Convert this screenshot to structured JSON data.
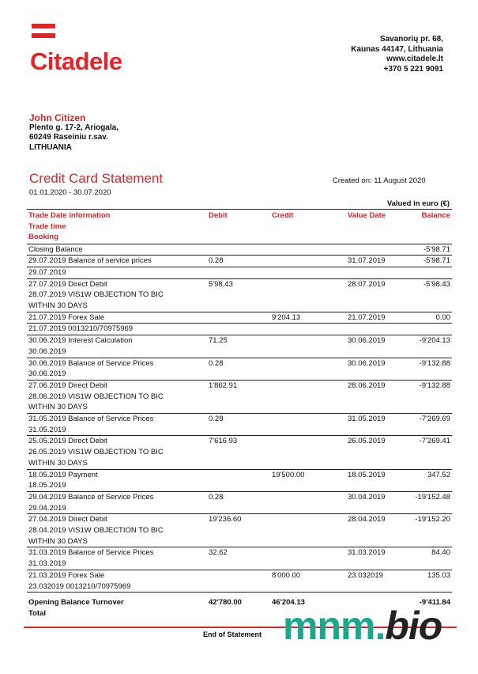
{
  "brand": {
    "name": "Citadele",
    "color": "#e0262b"
  },
  "bank_address": [
    "Savanorių pr. 68,",
    "Kaunas 44147, Lithuania",
    "www.citadele.lt",
    "+370 5 221 9091"
  ],
  "customer": {
    "name": "John Citizen",
    "address": [
      "Plento g. 17-2, Ariogala,",
      "60249 Raseiniu r.sav.",
      "LITHUANIA"
    ]
  },
  "title": "Credit Card Statement",
  "period": "01.01.2020 - 30.07.2020",
  "created": "Created on:  11 August 2020",
  "valued": "Valued in euro (€)",
  "columns": {
    "info": [
      "Trade Date   information",
      "Trade time",
      "Booking"
    ],
    "debit": "Debit",
    "credit": "Credit",
    "value_date": "Value Date",
    "balance": "Balance"
  },
  "rows": [
    {
      "info": [
        "Closing Balance"
      ],
      "debit": "",
      "credit": "",
      "value_date": "",
      "balance": "-5'98.71"
    },
    {
      "info": [
        "29.07.2019 Balance of service prices"
      ],
      "debit": "0.28",
      "credit": "",
      "value_date": "31.07.2019",
      "balance": "-5'98.71"
    },
    {
      "info": [
        "29.07.2019"
      ],
      "debit": "",
      "credit": "",
      "value_date": "",
      "balance": ""
    },
    {
      "info": [
        "27.07.2019 Direct Debit",
        "28.07.2019 VIS1W OBJECTION TO BIC",
        "WITHIN 30 DAYS"
      ],
      "debit": "5'98.43",
      "credit": "",
      "value_date": "28.07.2019",
      "balance": "-5'98.43"
    },
    {
      "info": [
        "21.07.2019 Forex Sale"
      ],
      "debit": "",
      "credit": "9'204.13",
      "value_date": "21.07.2019",
      "balance": "0.00"
    },
    {
      "info": [
        "21.07.2019 0013210/70975969"
      ],
      "debit": "",
      "credit": "",
      "value_date": "",
      "balance": ""
    },
    {
      "info": [
        "30.06.2019 Interest Calculation",
        "30.06.2019"
      ],
      "debit": "71.25",
      "credit": "",
      "value_date": "30.06.2019",
      "balance": "-9'204.13"
    },
    {
      "info": [
        "30.06.2019 Balance of Service Prices",
        "30.06.2019"
      ],
      "debit": "0.28",
      "credit": "",
      "value_date": "30.06.2019",
      "balance": "-9'132.88"
    },
    {
      "info": [
        "27.06.2019 Direct Debit",
        "28.06.2019 VIS1W OBJECTION TO BIC",
        "WITHIN 30 DAYS"
      ],
      "debit": "1'862.91",
      "credit": "",
      "value_date": "28.06.2019",
      "balance": "-9'132.88"
    },
    {
      "info": [
        "31.05.2019 Balance of Service Prices",
        "31.05.2019"
      ],
      "debit": "0.28",
      "credit": "",
      "value_date": "31.05.2019",
      "balance": "-7'269.69"
    },
    {
      "info": [
        "25.05.2019 Direct Debit",
        "26.05.2019 VIS1W OBJECTION TO BIC",
        "WITHIN 30 DAYS"
      ],
      "debit": "7'616.93",
      "credit": "",
      "value_date": "26.05.2019",
      "balance": "-7'269.41"
    },
    {
      "info": [
        "18.05.2019 Payment",
        "18.05.2019"
      ],
      "debit": "",
      "credit": "19'500.00",
      "value_date": "18.05.2019",
      "balance": "347.52"
    },
    {
      "info": [
        "29.04.2019 Balance of Service Prices",
        "29.04.2019"
      ],
      "debit": "0.28",
      "credit": "",
      "value_date": "30.04.2019",
      "balance": "-19'152.48"
    },
    {
      "info": [
        "27.04.2019 Direct Debit",
        "28.04.2019 VIS1W OBJECTION TO BIC",
        "WITHIN 30 DAYS"
      ],
      "debit": "19'236.60",
      "credit": "",
      "value_date": "28.04.2019",
      "balance": "-19'152.20"
    },
    {
      "info": [
        "31.03.2019 Balance of Service Prices",
        "31.03.2019"
      ],
      "debit": "32.62",
      "credit": "",
      "value_date": "31.03.2019",
      "balance": "84.40"
    },
    {
      "info": [
        "21.03.2019  Forex Sale",
        "23.032019 0013210/70975969"
      ],
      "debit": "",
      "credit": "8'000.00",
      "value_date": "23.032019",
      "balance": "135.03"
    }
  ],
  "totals": {
    "label": [
      "Opening Balance Turnover",
      "Total"
    ],
    "debit": "42'780.00",
    "credit": "46'204.13",
    "balance": "-9'411.84"
  },
  "footer": "End of Statement",
  "watermark": {
    "main": "mnm.",
    "accent": "bio"
  }
}
